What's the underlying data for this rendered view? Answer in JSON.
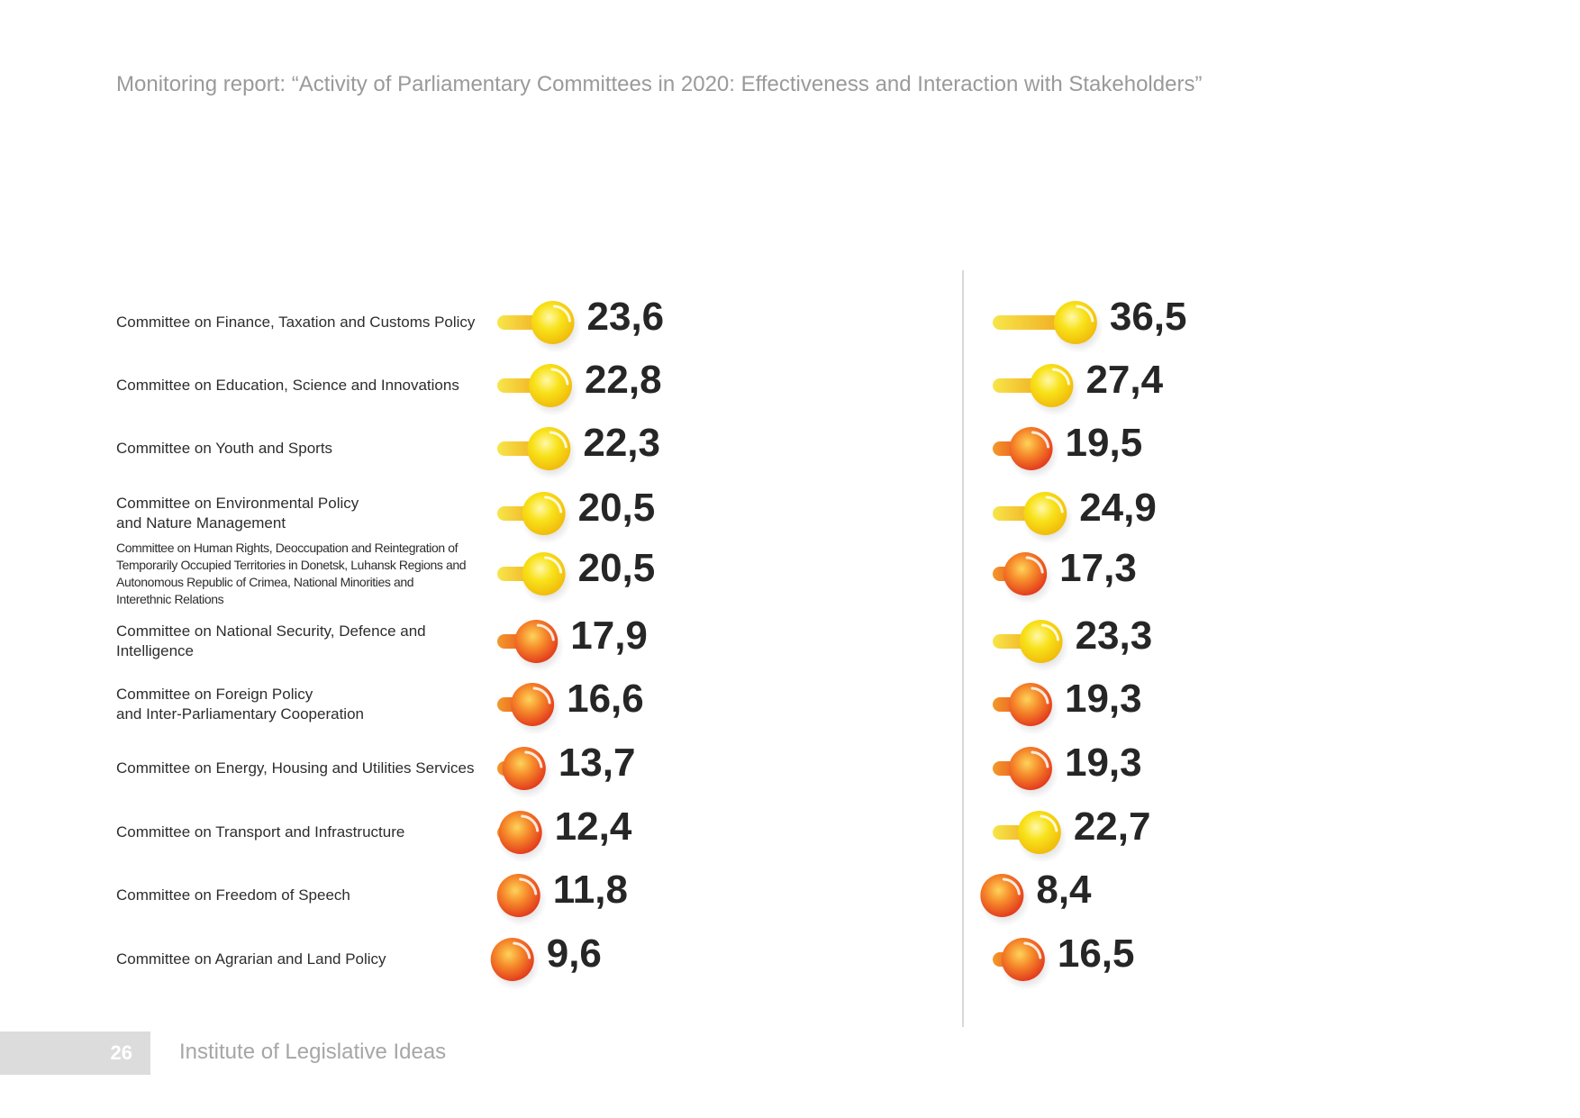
{
  "header": {
    "title": "Monitoring report: “Activity of Parliamentary Committees in 2020: Effectiveness and Interaction with Stakeholders”"
  },
  "footer": {
    "page_number": "26",
    "organization": "Institute of Legislative Ideas"
  },
  "colors": {
    "high": "#f5d51a",
    "low": "#ee5a1f",
    "value_text": "#262626",
    "divider": "#d9d9d9"
  },
  "chart_data": {
    "type": "bar",
    "threshold_color_change": 20,
    "categories": [
      [
        "Committee on Finance, Taxation and Customs Policy"
      ],
      [
        "Committee on Education, Science and Innovations"
      ],
      [
        "Committee on Youth and Sports"
      ],
      [
        "Committee on Environmental Policy",
        "and Nature Management"
      ],
      [
        "Committee on Human Rights, Deoccupation and Reintegration of",
        "Temporarily Occupied Territories in Donetsk, Luhansk Regions and",
        "Autonomous Republic of Crimea, National Minorities and",
        "Interethnic Relations"
      ],
      [
        "Committee on National Security, Defence and Intelligence"
      ],
      [
        "Committee on Foreign Policy",
        "and Inter-Parliamentary Cooperation"
      ],
      [
        "Committee on Energy, Housing and Utilities Services"
      ],
      [
        "Committee on Transport and Infrastructure"
      ],
      [
        "Committee on Freedom of Speech"
      ],
      [
        "Committee on Agrarian and Land Policy"
      ]
    ],
    "series": [
      {
        "values": [
          23.6,
          22.8,
          22.3,
          20.5,
          20.5,
          17.9,
          16.6,
          13.7,
          12.4,
          11.8,
          9.6
        ],
        "labels": [
          "23,6",
          "22,8",
          "22,3",
          "20,5",
          "20,5",
          "17,9",
          "16,6",
          "13,7",
          "12,4",
          "11,8",
          "9,6"
        ]
      },
      {
        "values": [
          36.5,
          27.4,
          19.5,
          24.9,
          17.3,
          23.3,
          19.3,
          19.3,
          22.7,
          8.4,
          16.5
        ],
        "labels": [
          "36,5",
          "27,4",
          "19,5",
          "24,9",
          "17,3",
          "23,3",
          "19,3",
          "19,3",
          "22,7",
          "8,4",
          "16,5"
        ]
      }
    ]
  }
}
